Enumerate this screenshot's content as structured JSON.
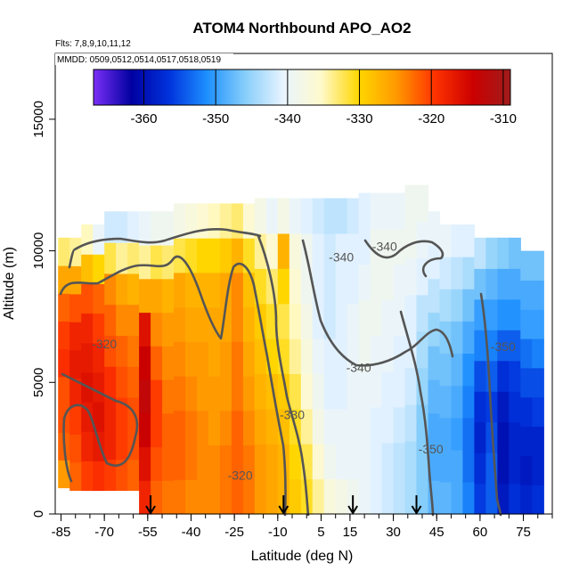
{
  "chart_data": {
    "type": "heatmap",
    "title": "ATOM4 Northbound APO_AO2",
    "subtitle_flights": "Flts: 7,8,9,10,11,12",
    "subtitle_dates": "MMDD: 0509,0512,0514,0517,0518,0519",
    "xlabel": "Latitude (deg N)",
    "ylabel": "Altitude (m)",
    "xlim": [
      -87,
      85
    ],
    "ylim": [
      0,
      17500
    ],
    "x_ticks": [
      -85,
      -70,
      -55,
      -40,
      -25,
      -10,
      5,
      15,
      30,
      45,
      60,
      75
    ],
    "x_tick_labels": [
      "-85",
      "-70",
      "-55",
      "-40",
      "-25",
      "-10",
      "5",
      "15",
      "30",
      "45",
      "60",
      "75"
    ],
    "y_ticks": [
      0,
      5000,
      10000,
      15000
    ],
    "y_tick_labels": [
      "0",
      "5000",
      "10000",
      "15000"
    ],
    "colorbar": {
      "min": -367,
      "max": -309,
      "ticks": [
        -360,
        -350,
        -340,
        -330,
        -320,
        -310
      ],
      "tick_labels": [
        "-360",
        "-350",
        "-340",
        "-330",
        "-320",
        "-310"
      ],
      "colors": [
        "#7b2ff7",
        "#0000a0",
        "#0033dd",
        "#1e90ff",
        "#87cefa",
        "#e8f4ff",
        "#fffacd",
        "#ffd700",
        "#ff9900",
        "#ff3300",
        "#cc0000",
        "#a01c1c"
      ]
    },
    "contour_labels": [
      {
        "text": "-320",
        "lat": -70,
        "alt": 6300
      },
      {
        "text": "-340",
        "lat": 18,
        "alt": 5400
      },
      {
        "text": "-330",
        "lat": -5,
        "alt": 3600
      },
      {
        "text": "-340",
        "lat": 12,
        "alt": 9600
      },
      {
        "text": "-340",
        "lat": 27,
        "alt": 10000
      },
      {
        "text": "-350",
        "lat": 43,
        "alt": 2300
      },
      {
        "text": "-350",
        "lat": 68,
        "alt": 6200
      },
      {
        "text": "-320",
        "lat": -23,
        "alt": 1300
      }
    ],
    "profile_markers_lat": [
      -54,
      -8,
      16,
      38
    ],
    "columns": [
      {
        "lat": -84,
        "top": 10500,
        "bot": 1000,
        "v": [
          -325,
          -322,
          -321,
          -321,
          -319,
          -320,
          -322,
          -326,
          -333
        ]
      },
      {
        "lat": -80,
        "top": 10500,
        "bot": 900,
        "v": [
          -322,
          -321,
          -320,
          -318,
          -317,
          -318,
          -321,
          -326,
          -334
        ]
      },
      {
        "lat": -76,
        "top": 11000,
        "bot": 900,
        "v": [
          -320,
          -318,
          -317,
          -316,
          -317,
          -318,
          -321,
          -328,
          -335
        ]
      },
      {
        "lat": -72,
        "top": 11000,
        "bot": 900,
        "v": [
          -319,
          -317,
          -316,
          -317,
          -318,
          -320,
          -322,
          -330,
          -340
        ]
      },
      {
        "lat": -68,
        "top": 11500,
        "bot": 900,
        "v": [
          -320,
          -318,
          -318,
          -319,
          -321,
          -322,
          -324,
          -332,
          -342
        ]
      },
      {
        "lat": -64,
        "top": 11500,
        "bot": 900,
        "v": [
          -321,
          -320,
          -320,
          -321,
          -322,
          -324,
          -326,
          -334,
          -342
        ]
      },
      {
        "lat": -60,
        "top": 11500,
        "bot": 900,
        "v": [
          -322,
          -321,
          -321,
          -322,
          -323,
          -324,
          -327,
          -333,
          -341
        ]
      },
      {
        "lat": -56,
        "top": 11500,
        "bot": 0,
        "v": [
          -318,
          -316,
          -314,
          -313,
          -314,
          -316,
          -326,
          -334,
          -340
        ]
      },
      {
        "lat": -52,
        "top": 11500,
        "bot": 0,
        "v": [
          -322,
          -321,
          -320,
          -320,
          -322,
          -324,
          -326,
          -332,
          -339
        ]
      },
      {
        "lat": -48,
        "top": 11500,
        "bot": 0,
        "v": [
          -323,
          -322,
          -322,
          -323,
          -324,
          -325,
          -327,
          -333,
          -339
        ]
      },
      {
        "lat": -44,
        "top": 11800,
        "bot": 0,
        "v": [
          -323,
          -322,
          -322,
          -323,
          -324,
          -325,
          -326,
          -332,
          -338
        ]
      },
      {
        "lat": -40,
        "top": 11800,
        "bot": 0,
        "v": [
          -324,
          -323,
          -323,
          -324,
          -325,
          -326,
          -327,
          -331,
          -337
        ]
      },
      {
        "lat": -36,
        "top": 11800,
        "bot": 0,
        "v": [
          -324,
          -324,
          -324,
          -325,
          -325,
          -326,
          -327,
          -330,
          -336
        ]
      },
      {
        "lat": -32,
        "top": 11800,
        "bot": 0,
        "v": [
          -324,
          -324,
          -325,
          -325,
          -326,
          -326,
          -327,
          -330,
          -335
        ]
      },
      {
        "lat": -28,
        "top": 11800,
        "bot": 0,
        "v": [
          -323,
          -323,
          -324,
          -325,
          -325,
          -326,
          -326,
          -329,
          -334
        ]
      },
      {
        "lat": -24,
        "top": 11800,
        "bot": 0,
        "v": [
          -322,
          -322,
          -322,
          -323,
          -323,
          -324,
          -324,
          -327,
          -333
        ]
      },
      {
        "lat": -20,
        "top": 11800,
        "bot": 0,
        "v": [
          -323,
          -323,
          -324,
          -325,
          -326,
          -327,
          -328,
          -331,
          -336
        ]
      },
      {
        "lat": -16,
        "top": 12000,
        "bot": 0,
        "v": [
          -325,
          -325,
          -326,
          -327,
          -328,
          -329,
          -331,
          -334,
          -338
        ]
      },
      {
        "lat": -12,
        "top": 12000,
        "bot": 0,
        "v": [
          -326,
          -326,
          -327,
          -328,
          -330,
          -331,
          -333,
          -336,
          -340
        ]
      },
      {
        "lat": -8,
        "top": 12000,
        "bot": 0,
        "v": [
          -327,
          -327,
          -328,
          -329,
          -331,
          -332,
          -330,
          -327,
          -338
        ]
      },
      {
        "lat": -4,
        "top": 12000,
        "bot": 0,
        "v": [
          -329,
          -330,
          -331,
          -332,
          -334,
          -335,
          -336,
          -337,
          -340
        ]
      },
      {
        "lat": 0,
        "top": 12000,
        "bot": 0,
        "v": [
          -331,
          -332,
          -334,
          -336,
          -337,
          -338,
          -339,
          -339,
          -341
        ]
      },
      {
        "lat": 4,
        "top": 12000,
        "bot": 0,
        "v": [
          -334,
          -336,
          -338,
          -339,
          -340,
          -341,
          -341,
          -341,
          -342
        ]
      },
      {
        "lat": 8,
        "top": 12000,
        "bot": 0,
        "v": [
          -337,
          -339,
          -340,
          -341,
          -341,
          -342,
          -342,
          -342,
          -343
        ]
      },
      {
        "lat": 12,
        "top": 12000,
        "bot": 0,
        "v": [
          -338,
          -340,
          -340,
          -341,
          -341,
          -341,
          -341,
          -341,
          -343
        ]
      },
      {
        "lat": 16,
        "top": 12000,
        "bot": 0,
        "v": [
          -339,
          -340,
          -340,
          -340,
          -340,
          -340,
          -341,
          -341,
          -342
        ]
      },
      {
        "lat": 20,
        "top": 12200,
        "bot": 0,
        "v": [
          -340,
          -340,
          -340,
          -340,
          -339,
          -339,
          -340,
          -341,
          -341
        ]
      },
      {
        "lat": 24,
        "top": 12200,
        "bot": 0,
        "v": [
          -341,
          -341,
          -341,
          -340,
          -340,
          -339,
          -339,
          -339,
          -340
        ]
      },
      {
        "lat": 28,
        "top": 12200,
        "bot": 0,
        "v": [
          -342,
          -342,
          -341,
          -341,
          -340,
          -340,
          -339,
          -339,
          -340
        ]
      },
      {
        "lat": 32,
        "top": 12200,
        "bot": 0,
        "v": [
          -343,
          -343,
          -342,
          -341,
          -341,
          -340,
          -340,
          -339,
          -340
        ]
      },
      {
        "lat": 36,
        "top": 12500,
        "bot": 0,
        "v": [
          -344,
          -344,
          -343,
          -342,
          -341,
          -341,
          -340,
          -339,
          -339
        ]
      },
      {
        "lat": 40,
        "top": 12500,
        "bot": 0,
        "v": [
          -346,
          -346,
          -346,
          -345,
          -344,
          -343,
          -341,
          -340,
          -339
        ]
      },
      {
        "lat": 44,
        "top": 11500,
        "bot": 0,
        "v": [
          -348,
          -349,
          -349,
          -348,
          -347,
          -345,
          -343,
          -341,
          -340
        ]
      },
      {
        "lat": 48,
        "top": 11000,
        "bot": 0,
        "v": [
          -348,
          -349,
          -349,
          -348,
          -347,
          -346,
          -344,
          -342,
          -340
        ]
      },
      {
        "lat": 52,
        "top": 11000,
        "bot": 0,
        "v": [
          -349,
          -349,
          -350,
          -349,
          -348,
          -347,
          -345,
          -343,
          -341
        ]
      },
      {
        "lat": 56,
        "top": 11000,
        "bot": 0,
        "v": [
          -352,
          -353,
          -353,
          -352,
          -351,
          -349,
          -347,
          -344,
          -341
        ]
      },
      {
        "lat": 60,
        "top": 10500,
        "bot": 0,
        "v": [
          -356,
          -357,
          -358,
          -357,
          -355,
          -352,
          -350,
          -347,
          -343
        ]
      },
      {
        "lat": 64,
        "top": 10500,
        "bot": 0,
        "v": [
          -354,
          -354,
          -355,
          -356,
          -354,
          -352,
          -350,
          -348,
          -345
        ]
      },
      {
        "lat": 68,
        "top": 10500,
        "bot": 0,
        "v": [
          -359,
          -360,
          -360,
          -359,
          -357,
          -354,
          -351,
          -349,
          -346
        ]
      },
      {
        "lat": 72,
        "top": 10500,
        "bot": 0,
        "v": [
          -357,
          -358,
          -358,
          -357,
          -356,
          -354,
          -351,
          -349,
          -347
        ]
      },
      {
        "lat": 76,
        "top": 10000,
        "bot": 0,
        "v": [
          -358,
          -359,
          -358,
          -357,
          -355,
          -353,
          -350,
          -349,
          -347
        ]
      },
      {
        "lat": 80,
        "top": 10000,
        "bot": 0,
        "v": [
          -357,
          -358,
          -358,
          -356,
          -355,
          -352,
          -350,
          -349,
          -347
        ]
      }
    ]
  }
}
